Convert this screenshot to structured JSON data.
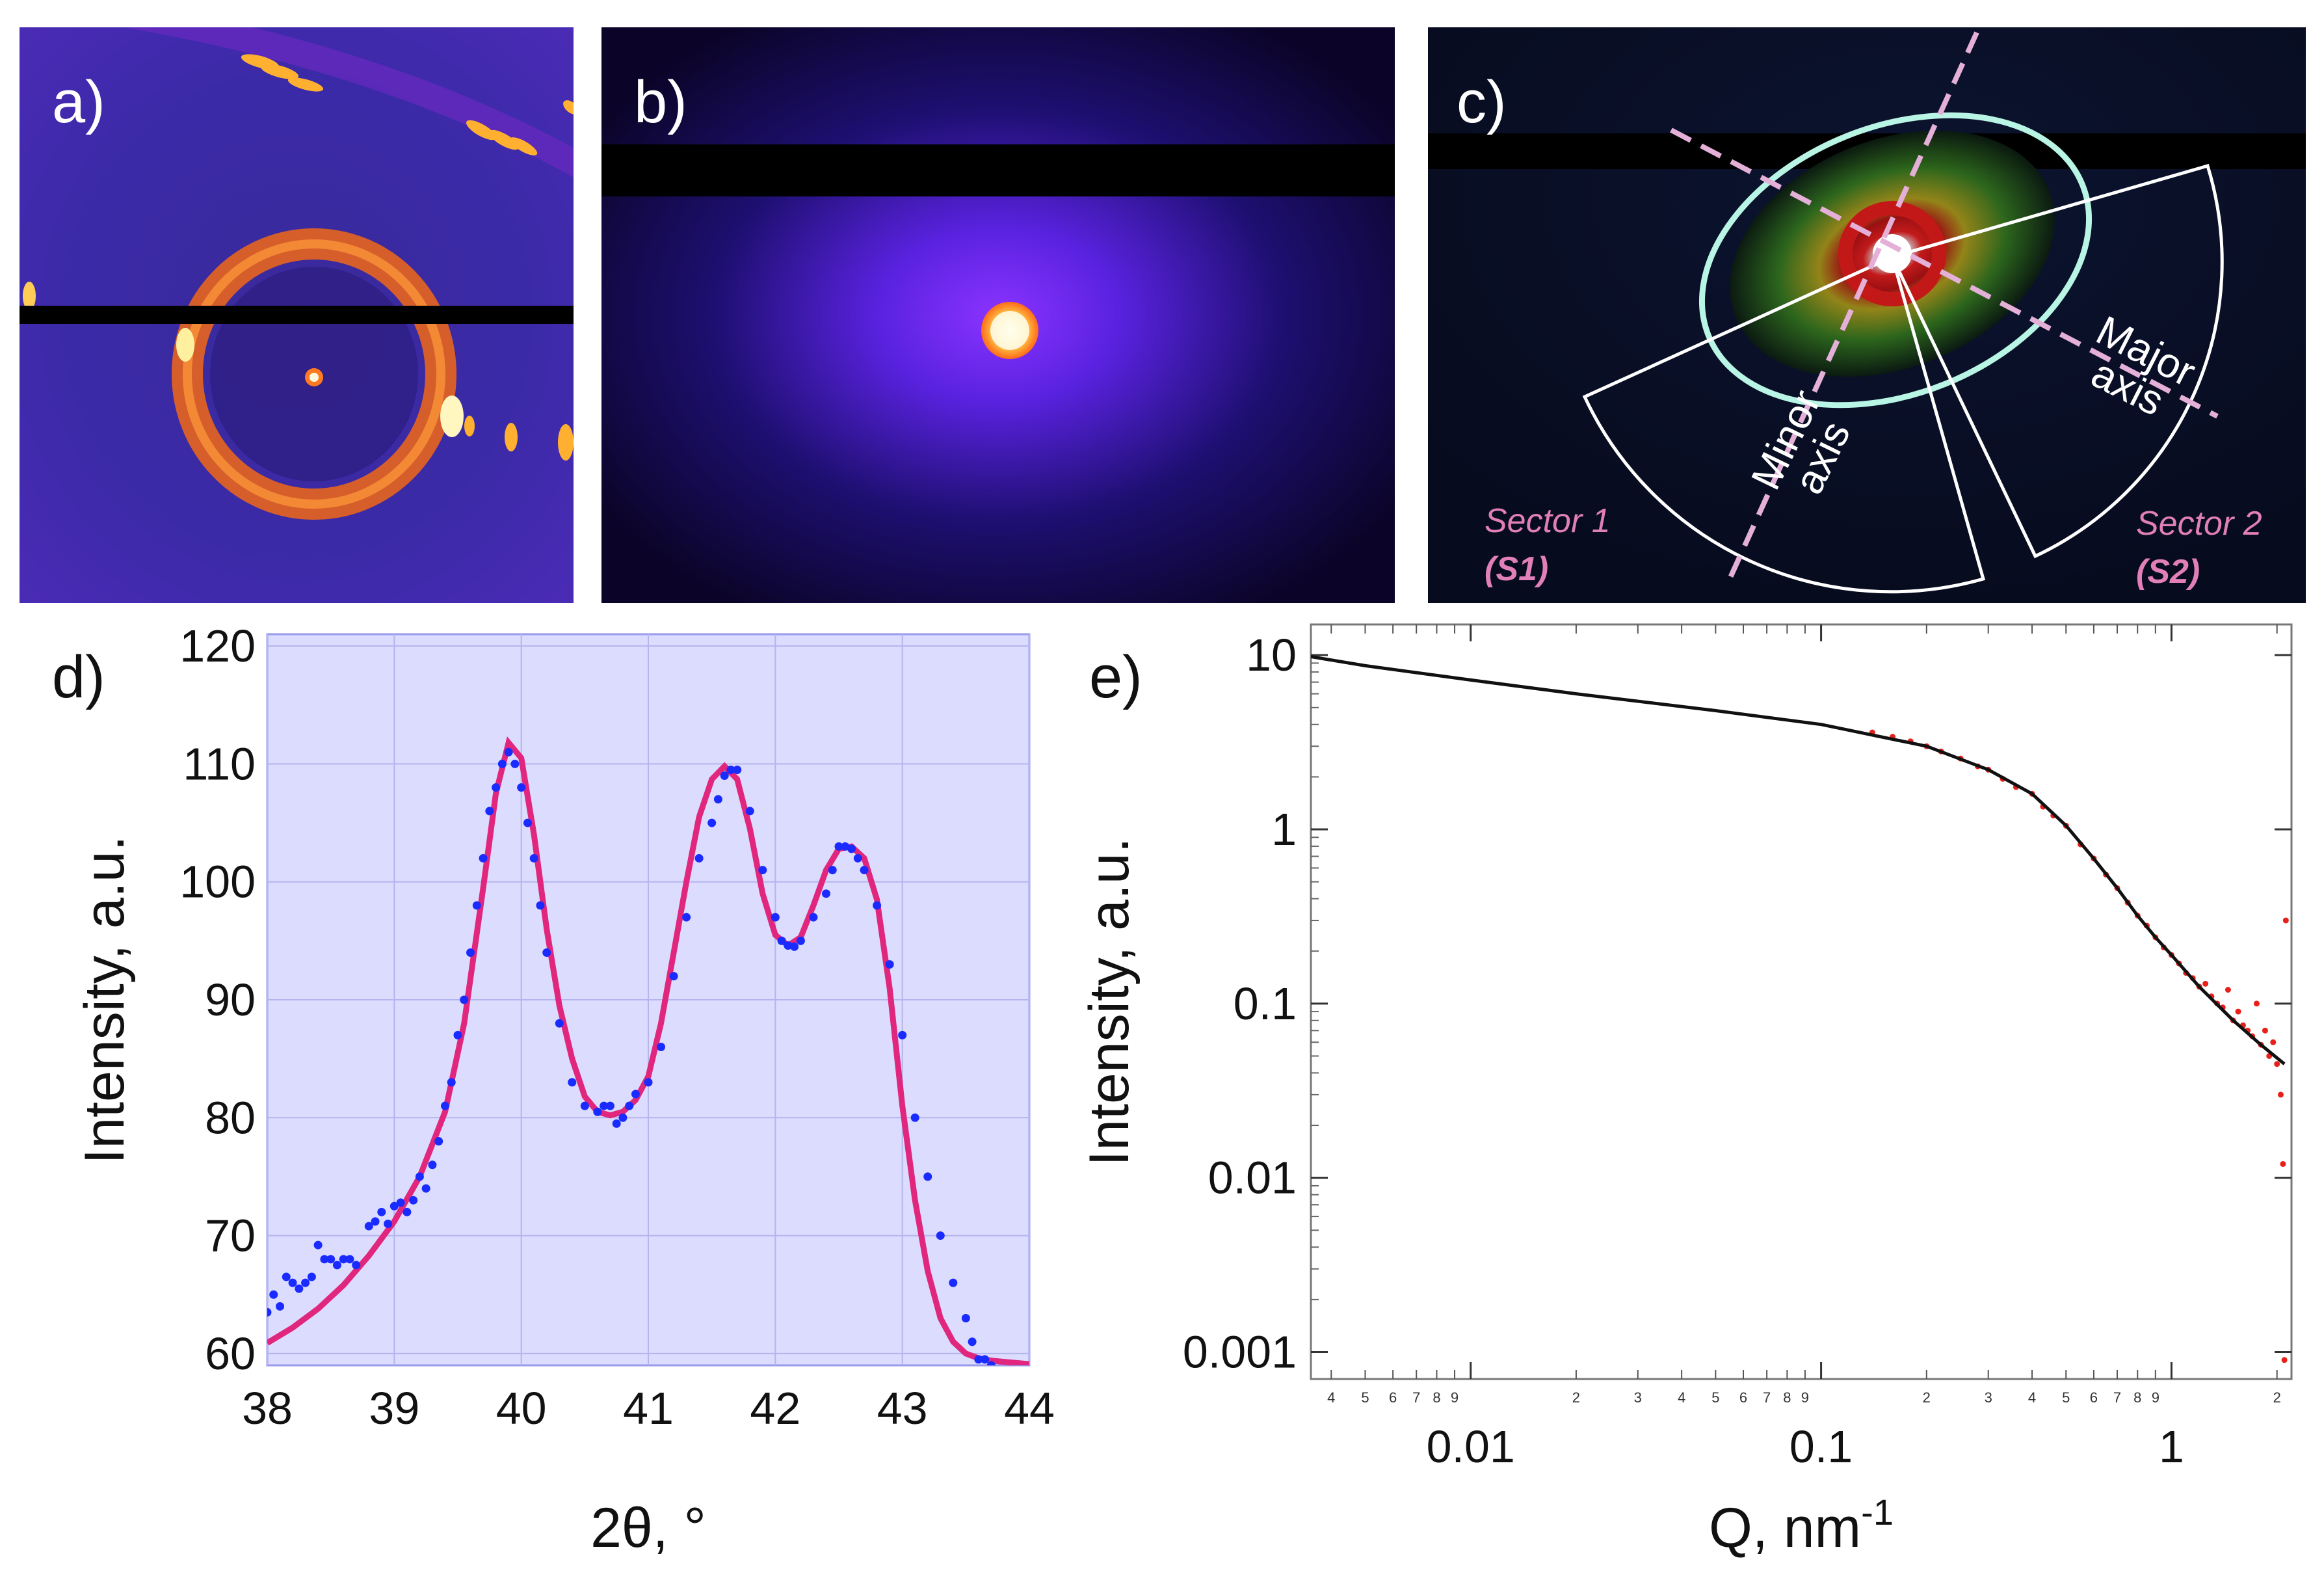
{
  "panels": {
    "a": {
      "label": "a)"
    },
    "b": {
      "label": "b)"
    },
    "c": {
      "label": "c)",
      "major_axis": [
        "Major",
        "axis"
      ],
      "minor_axis": [
        "Minor",
        "axis"
      ],
      "sector1": [
        "Sector 1",
        "(S1)"
      ],
      "sector2": [
        "Sector 2",
        "(S2)"
      ],
      "annotation_color": "#e07fb8"
    },
    "d": {
      "label": "d)"
    },
    "e": {
      "label": "e)"
    }
  },
  "colors": {
    "fit_line": "#e0267d",
    "data_points": "#1a2bff",
    "panel_d_background": "#dcdcff",
    "saxs_points": "#e8201a"
  },
  "chart_data": [
    {
      "id": "d",
      "type": "scatter",
      "xlabel": "2θ, °",
      "ylabel": "Intensity, a.u.",
      "xlim": [
        38,
        44
      ],
      "ylim": [
        59,
        121
      ],
      "xticks": [
        38,
        39,
        40,
        41,
        42,
        43,
        44
      ],
      "yticks": [
        60,
        70,
        80,
        90,
        100,
        110,
        120
      ],
      "series": [
        {
          "name": "data",
          "style": "points",
          "x": [
            38.0,
            38.05,
            38.1,
            38.15,
            38.2,
            38.25,
            38.3,
            38.35,
            38.4,
            38.45,
            38.5,
            38.55,
            38.6,
            38.65,
            38.7,
            38.8,
            38.85,
            38.9,
            38.95,
            39.0,
            39.05,
            39.1,
            39.15,
            39.2,
            39.25,
            39.3,
            39.35,
            39.4,
            39.45,
            39.5,
            39.55,
            39.6,
            39.65,
            39.7,
            39.75,
            39.8,
            39.85,
            39.9,
            39.95,
            40.0,
            40.05,
            40.1,
            40.15,
            40.2,
            40.3,
            40.4,
            40.5,
            40.6,
            40.65,
            40.7,
            40.75,
            40.8,
            40.85,
            40.9,
            41.0,
            41.1,
            41.2,
            41.3,
            41.4,
            41.5,
            41.55,
            41.6,
            41.65,
            41.7,
            41.8,
            41.9,
            42.0,
            42.05,
            42.1,
            42.15,
            42.2,
            42.3,
            42.4,
            42.45,
            42.5,
            42.55,
            42.6,
            42.65,
            42.7,
            42.8,
            42.9,
            43.0,
            43.1,
            43.2,
            43.3,
            43.4,
            43.5,
            43.55,
            43.6,
            43.65,
            43.7
          ],
          "y": [
            63.5,
            65,
            64,
            66.5,
            66,
            65.5,
            66,
            66.5,
            69.2,
            68,
            68,
            67.5,
            68,
            68,
            67.5,
            70.8,
            71.2,
            72,
            71,
            72.5,
            72.8,
            72,
            73,
            75,
            74,
            76,
            78,
            81,
            83,
            87,
            90,
            94,
            98,
            102,
            106,
            108,
            110,
            111,
            110,
            108,
            105,
            102,
            98,
            94,
            88,
            83,
            81,
            80.5,
            81,
            81,
            79.5,
            80,
            81,
            82,
            83,
            86,
            92,
            97,
            102,
            105,
            107,
            109,
            109.5,
            109.5,
            106,
            101,
            97,
            95,
            94.6,
            94.5,
            95,
            97,
            99,
            101,
            103,
            103,
            102.8,
            102,
            101,
            98,
            93,
            87,
            80,
            75,
            70,
            66,
            63,
            61,
            59.5,
            59.5,
            59
          ]
        },
        {
          "name": "fit",
          "style": "line",
          "x": [
            38.0,
            38.2,
            38.4,
            38.6,
            38.8,
            39.0,
            39.2,
            39.4,
            39.55,
            39.7,
            39.8,
            39.9,
            40.0,
            40.1,
            40.2,
            40.3,
            40.4,
            40.5,
            40.6,
            40.7,
            40.8,
            40.9,
            41.0,
            41.1,
            41.2,
            41.3,
            41.4,
            41.5,
            41.6,
            41.7,
            41.8,
            41.9,
            42.0,
            42.1,
            42.2,
            42.3,
            42.4,
            42.5,
            42.6,
            42.7,
            42.8,
            42.9,
            43.0,
            43.1,
            43.2,
            43.3,
            43.4,
            43.5,
            43.6,
            43.7,
            43.8,
            43.9,
            44.0
          ],
          "y": [
            60.9,
            62.2,
            63.8,
            65.8,
            68.3,
            71.2,
            75,
            80.5,
            88,
            99.5,
            107.5,
            111.8,
            110.5,
            104,
            96,
            89.5,
            85,
            81.8,
            80.5,
            80.2,
            80.5,
            81.5,
            83.5,
            88,
            94,
            100,
            105.5,
            108.7,
            109.8,
            108.7,
            104.5,
            99,
            95.5,
            94.6,
            95.3,
            98,
            101,
            102.8,
            103,
            102,
            98.5,
            91,
            81,
            73,
            67,
            63,
            61,
            60,
            59.6,
            59.4,
            59.3,
            59.2,
            59.1
          ]
        }
      ]
    },
    {
      "id": "e",
      "type": "scatter",
      "xscale": "log",
      "yscale": "log",
      "xlabel": "Q, nm",
      "xlabel_superscript": "-1",
      "ylabel": "Intensity, a.u.",
      "xlim": [
        0.0035,
        2.2
      ],
      "ylim": [
        0.0007,
        15
      ],
      "xtick_labels": [
        "0.01",
        "0.1",
        "1"
      ],
      "xtick_values": [
        0.01,
        0.1,
        1
      ],
      "ytick_labels": [
        "10",
        "1",
        "0.1",
        "0.01",
        "0.001"
      ],
      "ytick_values": [
        10,
        1,
        0.1,
        0.01,
        0.001
      ],
      "minor_tick_labels": [
        {
          "q": 0.004,
          "t": "4"
        },
        {
          "q": 0.005,
          "t": "5"
        },
        {
          "q": 0.006,
          "t": "6"
        },
        {
          "q": 0.007,
          "t": "7"
        },
        {
          "q": 0.008,
          "t": "8"
        },
        {
          "q": 0.009,
          "t": "9"
        },
        {
          "q": 0.02,
          "t": "2"
        },
        {
          "q": 0.03,
          "t": "3"
        },
        {
          "q": 0.04,
          "t": "4"
        },
        {
          "q": 0.05,
          "t": "5"
        },
        {
          "q": 0.06,
          "t": "6"
        },
        {
          "q": 0.07,
          "t": "7"
        },
        {
          "q": 0.08,
          "t": "8"
        },
        {
          "q": 0.09,
          "t": "9"
        },
        {
          "q": 0.2,
          "t": "2"
        },
        {
          "q": 0.3,
          "t": "3"
        },
        {
          "q": 0.4,
          "t": "4"
        },
        {
          "q": 0.5,
          "t": "5"
        },
        {
          "q": 0.6,
          "t": "6"
        },
        {
          "q": 0.7,
          "t": "7"
        },
        {
          "q": 0.8,
          "t": "8"
        },
        {
          "q": 0.9,
          "t": "9"
        },
        {
          "q": 2,
          "t": "2"
        }
      ],
      "series": [
        {
          "name": "fit",
          "style": "line",
          "x": [
            0.0035,
            0.005,
            0.01,
            0.02,
            0.05,
            0.1,
            0.2,
            0.3,
            0.4,
            0.5,
            0.6,
            0.7,
            0.8,
            0.9,
            1.0,
            1.2,
            1.5,
            1.8,
            2.1
          ],
          "y": [
            9.8,
            8.7,
            7.2,
            6.0,
            4.8,
            4.0,
            3.0,
            2.2,
            1.6,
            1.05,
            0.68,
            0.46,
            0.32,
            0.24,
            0.19,
            0.125,
            0.08,
            0.058,
            0.045
          ]
        },
        {
          "name": "data",
          "style": "points",
          "x": [
            0.14,
            0.16,
            0.18,
            0.2,
            0.22,
            0.25,
            0.28,
            0.3,
            0.33,
            0.36,
            0.4,
            0.43,
            0.46,
            0.5,
            0.55,
            0.6,
            0.65,
            0.7,
            0.75,
            0.8,
            0.85,
            0.9,
            0.95,
            1.0,
            1.05,
            1.1,
            1.15,
            1.2,
            1.25,
            1.3,
            1.35,
            1.4,
            1.45,
            1.5,
            1.55,
            1.6,
            1.65,
            1.7,
            1.75,
            1.8,
            1.85,
            1.9,
            1.95,
            2.0,
            2.05,
            2.08,
            2.1,
            2.12
          ],
          "y": [
            3.6,
            3.4,
            3.2,
            3.0,
            2.8,
            2.55,
            2.3,
            2.2,
            1.95,
            1.75,
            1.6,
            1.35,
            1.2,
            1.05,
            0.82,
            0.68,
            0.55,
            0.46,
            0.38,
            0.32,
            0.28,
            0.24,
            0.21,
            0.19,
            0.17,
            0.15,
            0.14,
            0.125,
            0.13,
            0.11,
            0.1,
            0.095,
            0.12,
            0.08,
            0.09,
            0.075,
            0.07,
            0.065,
            0.1,
            0.058,
            0.07,
            0.05,
            0.06,
            0.045,
            0.03,
            0.012,
            0.0009,
            0.3
          ]
        }
      ]
    }
  ]
}
